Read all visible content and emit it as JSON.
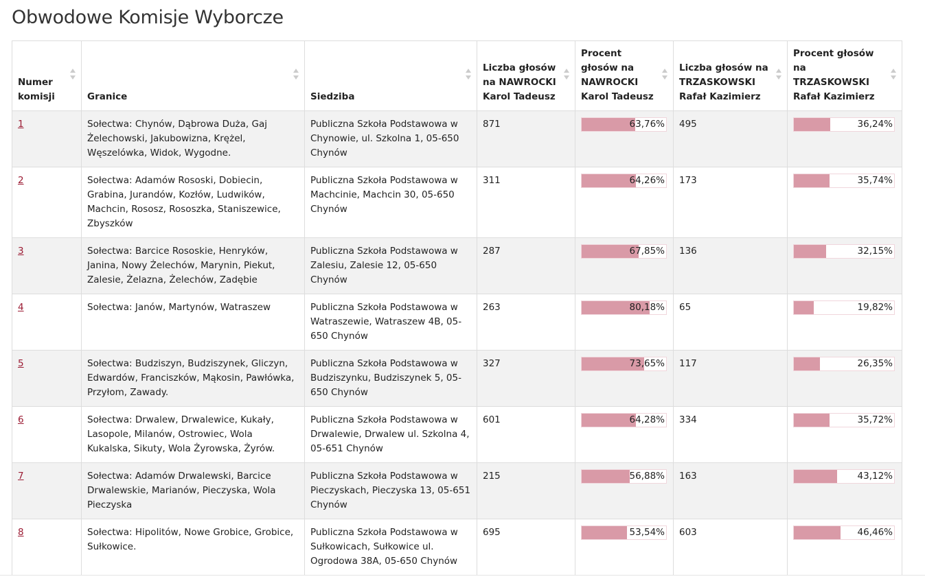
{
  "page_title": "Obwodowe Komisje Wyborcze",
  "colors": {
    "bar_fill": "#d99aa7",
    "link": "#9b1b33",
    "row_stripe": "#f2f2f2"
  },
  "table": {
    "headers": [
      "Numer komisji",
      "Granice",
      "Siedziba",
      "Liczba głosów na NAWROCKI Karol Tadeusz",
      "Procent głosów na NAWROCKI Karol Tadeusz",
      "Liczba głosów na TRZASKOWSKI Rafał Kazimierz",
      "Procent głosów na TRZASKOWSKI Rafał Kazimierz"
    ],
    "rows": [
      {
        "number": "1",
        "granice": "Sołectwa: Chynów, Dąbrowa Duża, Gaj Żelechowski, Jakubowizna, Krężel, Węszelówka, Widok, Wygodne.",
        "siedziba": "Publiczna Szkoła Podstawowa w Chynowie, ul. Szkolna 1, 05-650 Chynów",
        "nawrocki_votes": "871",
        "nawrocki_pct": "63,76%",
        "nawrocki_share": 63.76,
        "trzaskowski_votes": "495",
        "trzaskowski_pct": "36,24%",
        "trzaskowski_share": 36.24
      },
      {
        "number": "2",
        "granice": "Sołectwa: Adamów Rososki, Dobiecin, Grabina, Jurandów, Kozłów, Ludwików, Machcin, Rososz, Rososzka, Staniszewice, Zbyszków",
        "siedziba": "Publiczna Szkoła Podstawowa w Machcinie, Machcin 30, 05-650 Chynów",
        "nawrocki_votes": "311",
        "nawrocki_pct": "64,26%",
        "nawrocki_share": 64.26,
        "trzaskowski_votes": "173",
        "trzaskowski_pct": "35,74%",
        "trzaskowski_share": 35.74
      },
      {
        "number": "3",
        "granice": "Sołectwa: Barcice Rososkie, Henryków, Janina, Nowy Żelechów, Marynin, Piekut, Zalesie, Żelazna, Żelechów, Zadębie",
        "siedziba": "Publiczna Szkoła Podstawowa w Zalesiu, Zalesie 12, 05-650 Chynów",
        "nawrocki_votes": "287",
        "nawrocki_pct": "67,85%",
        "nawrocki_share": 67.85,
        "trzaskowski_votes": "136",
        "trzaskowski_pct": "32,15%",
        "trzaskowski_share": 32.15
      },
      {
        "number": "4",
        "granice": "Sołectwa: Janów, Martynów, Watraszew",
        "siedziba": "Publiczna Szkoła Podstawowa w Watraszewie, Watraszew 4B, 05-650 Chynów",
        "nawrocki_votes": "263",
        "nawrocki_pct": "80,18%",
        "nawrocki_share": 80.18,
        "trzaskowski_votes": "65",
        "trzaskowski_pct": "19,82%",
        "trzaskowski_share": 19.82
      },
      {
        "number": "5",
        "granice": "Sołectwa: Budziszyn, Budziszynek, Gliczyn, Edwardów, Franciszków, Mąkosin, Pawłówka, Przyłom, Zawady.",
        "siedziba": "Publiczna Szkoła Podstawowa w Budziszynku, Budziszynek 5, 05-650 Chynów",
        "nawrocki_votes": "327",
        "nawrocki_pct": "73,65%",
        "nawrocki_share": 73.65,
        "trzaskowski_votes": "117",
        "trzaskowski_pct": "26,35%",
        "trzaskowski_share": 26.35
      },
      {
        "number": "6",
        "granice": "Sołectwa: Drwalew, Drwalewice, Kukały, Lasopole, Milanów, Ostrowiec, Wola Kukalska, Sikuty, Wola Żyrowska, Żyrów.",
        "siedziba": "Publiczna Szkoła Podstawowa w Drwalewie, Drwalew ul. Szkolna 4, 05-651 Chynów",
        "nawrocki_votes": "601",
        "nawrocki_pct": "64,28%",
        "nawrocki_share": 64.28,
        "trzaskowski_votes": "334",
        "trzaskowski_pct": "35,72%",
        "trzaskowski_share": 35.72
      },
      {
        "number": "7",
        "granice": "Sołectwa: Adamów Drwalewski, Barcice Drwalewskie, Marianów, Pieczyska, Wola Pieczyska",
        "siedziba": "Publiczna Szkoła Podstawowa w Pieczyskach, Pieczyska 13, 05-651 Chynów",
        "nawrocki_votes": "215",
        "nawrocki_pct": "56,88%",
        "nawrocki_share": 56.88,
        "trzaskowski_votes": "163",
        "trzaskowski_pct": "43,12%",
        "trzaskowski_share": 43.12
      },
      {
        "number": "8",
        "granice": "Sołectwa: Hipolitów, Nowe Grobice, Grobice, Sułkowice.",
        "siedziba": "Publiczna Szkoła Podstawowa w Sułkowicach, Sułkowice ul. Ogrodowa 38A, 05-650 Chynów",
        "nawrocki_votes": "695",
        "nawrocki_pct": "53,54%",
        "nawrocki_share": 53.54,
        "trzaskowski_votes": "603",
        "trzaskowski_pct": "46,46%",
        "trzaskowski_share": 46.46
      }
    ]
  }
}
